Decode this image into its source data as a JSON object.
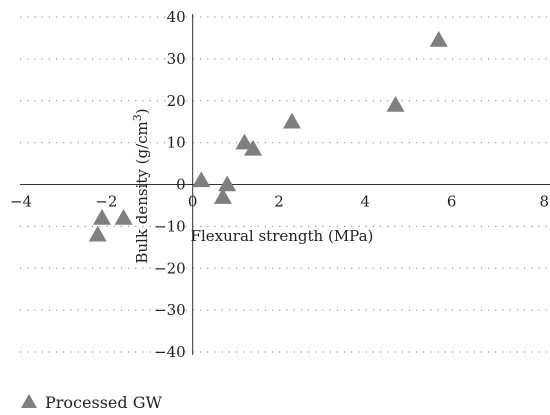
{
  "chart_data": {
    "type": "scatter",
    "xlabel": "Flexural strength (MPa)",
    "ylabel": "Bulk density (g/cm3)",
    "xlim": [
      -4,
      8
    ],
    "ylim": [
      -40,
      40
    ],
    "x_ticks": [
      "−4",
      "−2",
      "0",
      "2",
      "4",
      "6",
      "8"
    ],
    "y_ticks": [
      "40",
      "30",
      "20",
      "10",
      "0",
      "−10",
      "−20",
      "−30",
      "−40"
    ],
    "grid": "dotted horizontal",
    "legend_position": "bottom-left",
    "marker": "triangle",
    "marker_color": "#7f7f7f",
    "series": [
      {
        "name": "Processed GW",
        "points": [
          {
            "x": -2.1,
            "y": -8
          },
          {
            "x": -2.2,
            "y": -12
          },
          {
            "x": -1.6,
            "y": -8
          },
          {
            "x": 0.2,
            "y": 1
          },
          {
            "x": 0.7,
            "y": -3
          },
          {
            "x": 0.8,
            "y": 0
          },
          {
            "x": 1.2,
            "y": 10
          },
          {
            "x": 1.4,
            "y": 8.5
          },
          {
            "x": 2.3,
            "y": 15
          },
          {
            "x": 4.7,
            "y": 19
          },
          {
            "x": 5.7,
            "y": 34.5
          }
        ]
      }
    ]
  }
}
